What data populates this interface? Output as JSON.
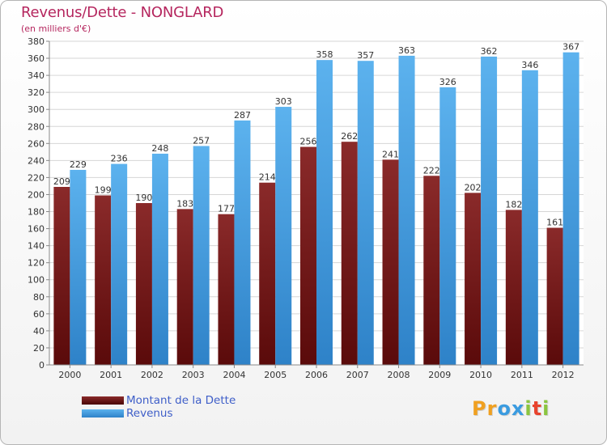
{
  "chart_data": {
    "type": "bar",
    "title": "Revenus/Dette - NONGLARD",
    "subtitle": "(en milliers d'€)",
    "categories": [
      "2000",
      "2001",
      "2002",
      "2003",
      "2004",
      "2005",
      "2006",
      "2007",
      "2008",
      "2009",
      "2010",
      "2011",
      "2012"
    ],
    "series": [
      {
        "name": "Montant de la Dette",
        "color": "#7a1a1a",
        "values": [
          209,
          199,
          190,
          183,
          177,
          214,
          256,
          262,
          241,
          222,
          202,
          182,
          161
        ]
      },
      {
        "name": "Revenus",
        "color": "#4aa3e6",
        "values": [
          229,
          236,
          248,
          257,
          287,
          303,
          358,
          357,
          363,
          326,
          362,
          346,
          367
        ]
      }
    ],
    "ylim": [
      0,
      380
    ],
    "yticks": [
      0,
      20,
      40,
      60,
      80,
      100,
      120,
      140,
      160,
      180,
      200,
      220,
      240,
      260,
      280,
      300,
      320,
      340,
      360,
      380
    ],
    "grid": true,
    "legend": "bottom-left"
  },
  "logo": {
    "letters": [
      {
        "char": "P",
        "color": "#f0a020"
      },
      {
        "char": "r",
        "color": "#f0a020"
      },
      {
        "char": "o",
        "color": "#3a9be0"
      },
      {
        "char": "x",
        "color": "#3a9be0"
      },
      {
        "char": "i",
        "color": "#8bc53f"
      },
      {
        "char": "t",
        "color": "#e8432e"
      },
      {
        "char": "i",
        "color": "#8bc53f"
      }
    ]
  }
}
